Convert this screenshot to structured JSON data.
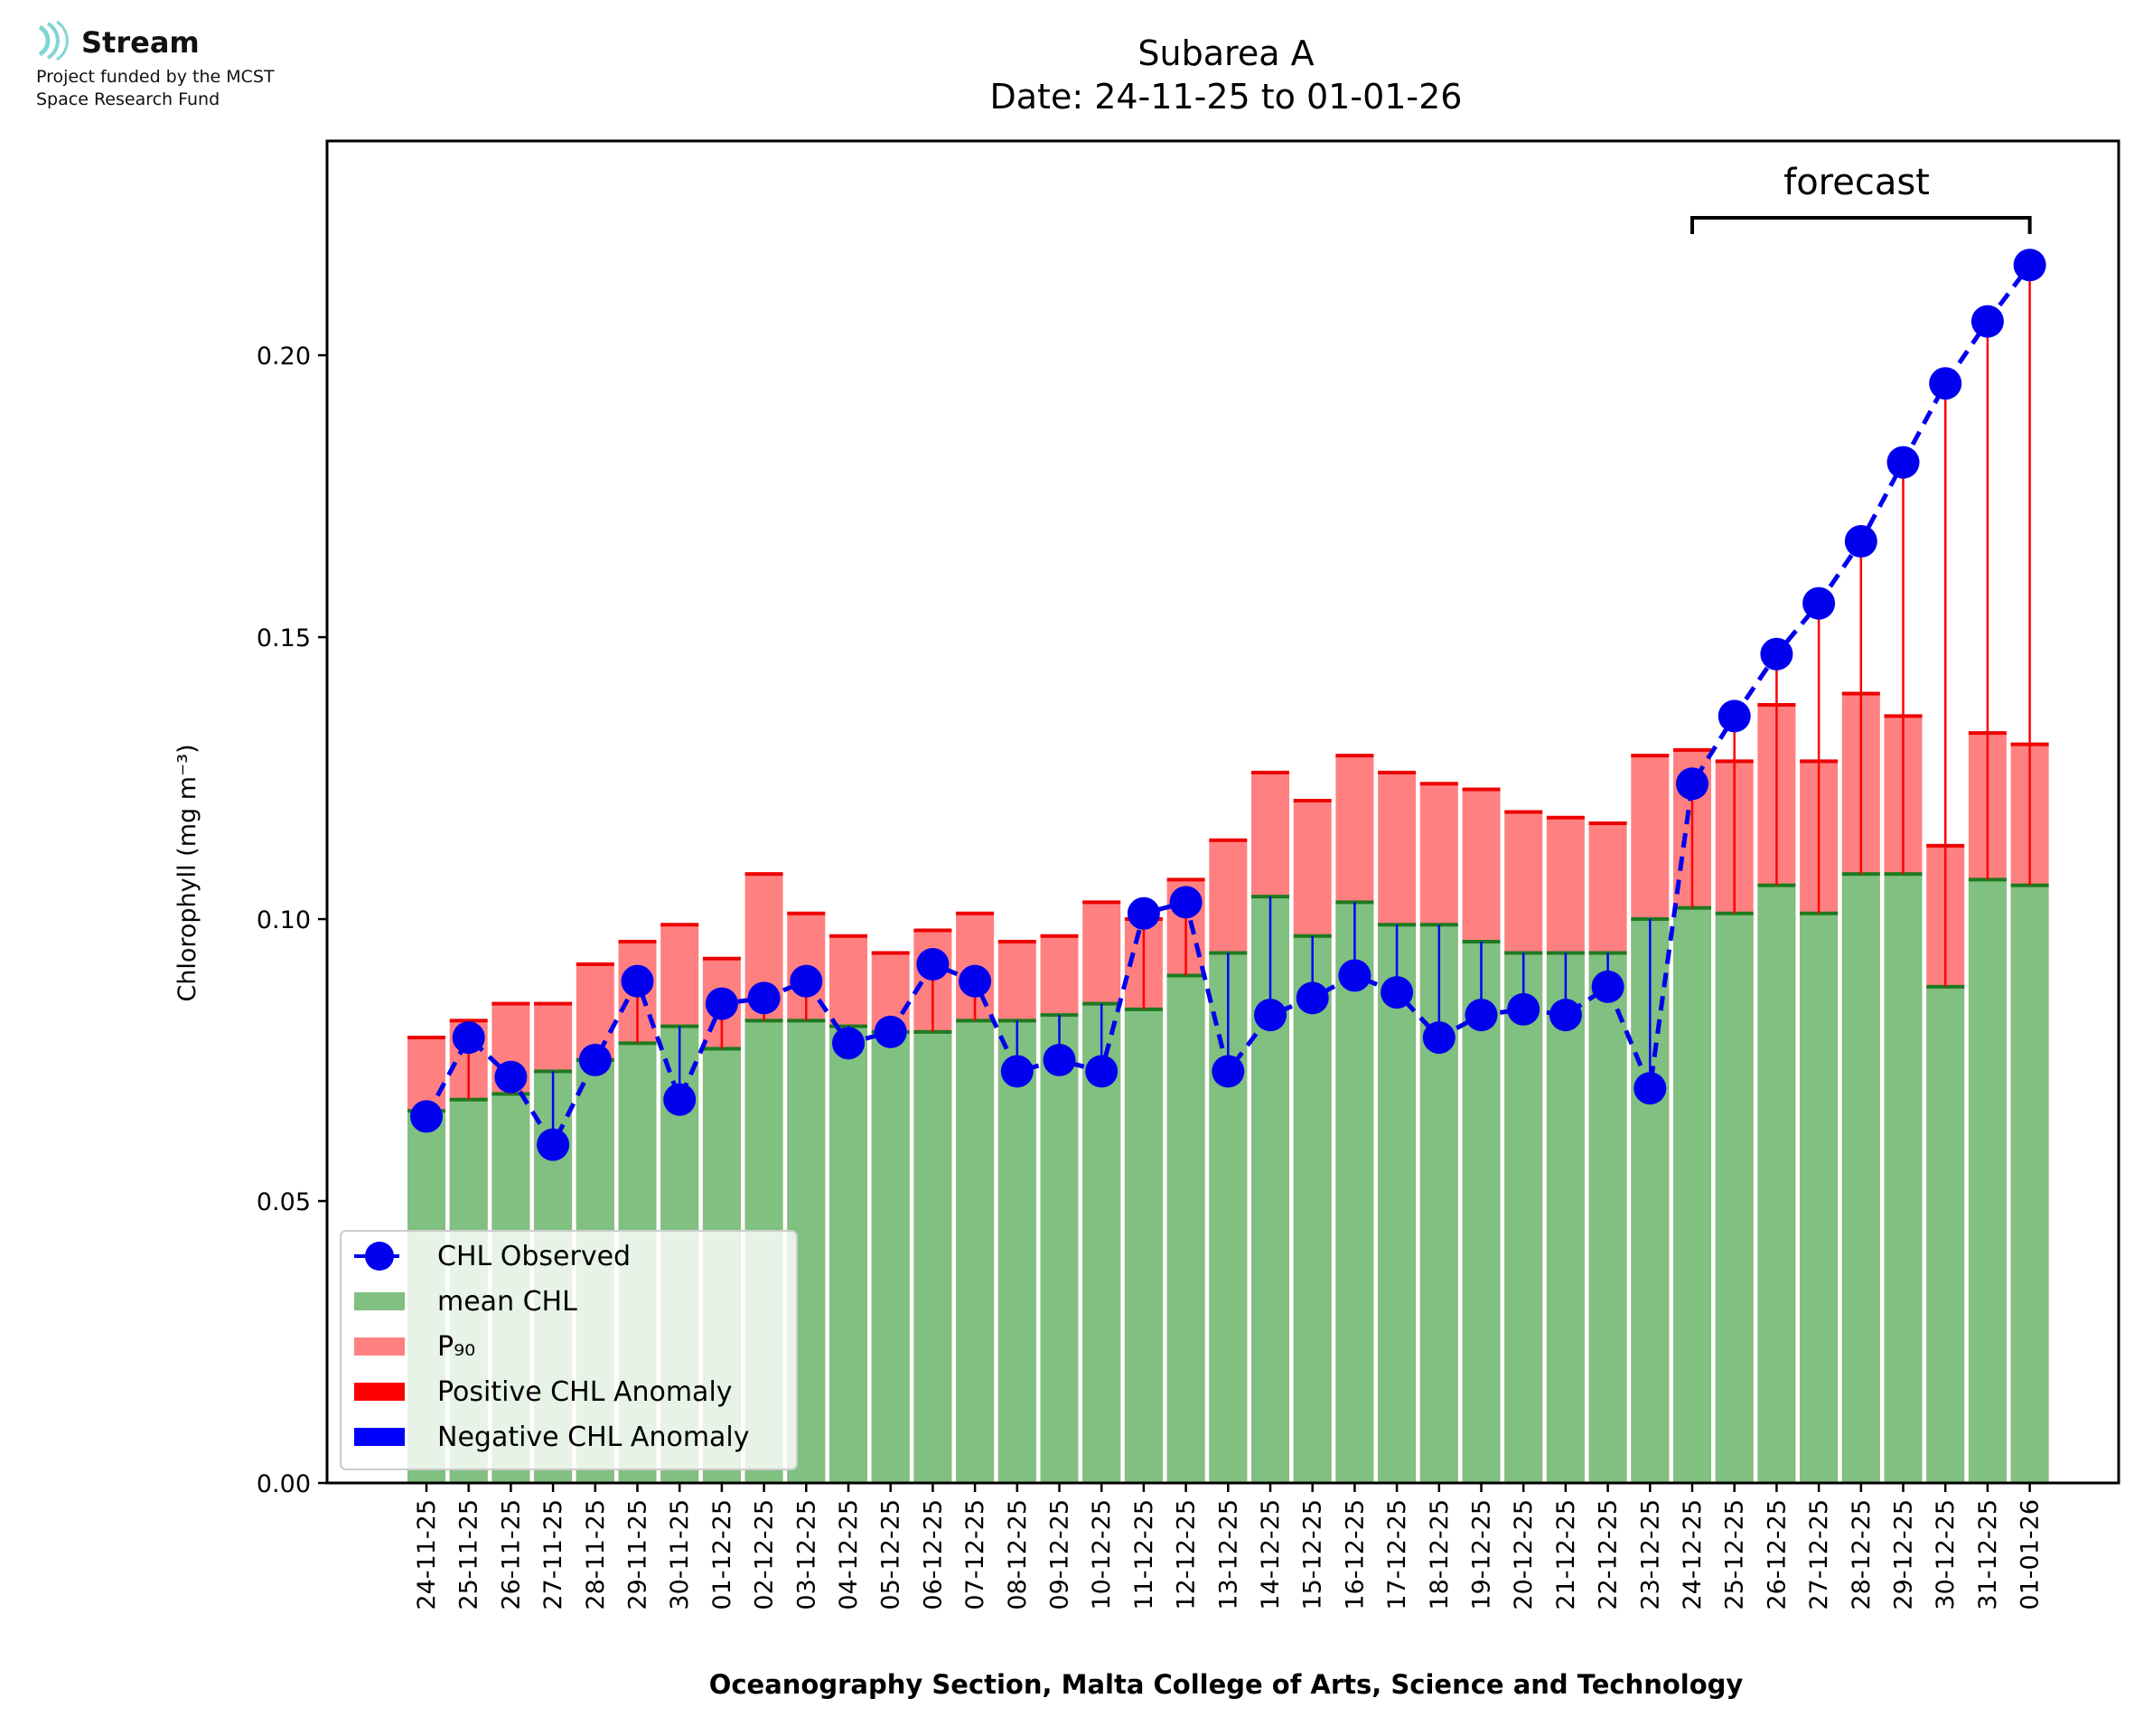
{
  "branding": {
    "name": "Stream",
    "line1": "Project funded by the MCST",
    "line2": "Space Research Fund",
    "accent_color": "#7fd6d4"
  },
  "chart_data": {
    "type": "bar",
    "title": "Subarea A",
    "subtitle": "Date: 24-11-25 to 01-01-26",
    "xlabel": "Oceanography Section, Malta College of Arts, Science and Technology",
    "ylabel": "Chlorophyll (mg m⁻³)",
    "ylim": [
      0,
      0.238
    ],
    "yticks": [
      0.0,
      0.05,
      0.1,
      0.15,
      0.2
    ],
    "ytick_labels": [
      "0.00",
      "0.05",
      "0.10",
      "0.15",
      "0.20"
    ],
    "annotation": "forecast",
    "forecast_start": "24-12-25",
    "forecast_end": "01-01-26",
    "categories": [
      "24-11-25",
      "25-11-25",
      "26-11-25",
      "27-11-25",
      "28-11-25",
      "29-11-25",
      "30-11-25",
      "01-12-25",
      "02-12-25",
      "03-12-25",
      "04-12-25",
      "05-12-25",
      "06-12-25",
      "07-12-25",
      "08-12-25",
      "09-12-25",
      "10-12-25",
      "11-12-25",
      "12-12-25",
      "13-12-25",
      "14-12-25",
      "15-12-25",
      "16-12-25",
      "17-12-25",
      "18-12-25",
      "19-12-25",
      "20-12-25",
      "21-12-25",
      "22-12-25",
      "23-12-25",
      "24-12-25",
      "25-12-25",
      "26-12-25",
      "27-12-25",
      "28-12-25",
      "29-12-25",
      "30-12-25",
      "31-12-25",
      "01-01-26"
    ],
    "series": [
      {
        "name": "mean CHL",
        "color": "#80c080",
        "values": [
          0.066,
          0.068,
          0.069,
          0.073,
          0.075,
          0.078,
          0.081,
          0.077,
          0.082,
          0.082,
          0.081,
          0.08,
          0.08,
          0.082,
          0.082,
          0.083,
          0.085,
          0.084,
          0.09,
          0.094,
          0.104,
          0.097,
          0.103,
          0.099,
          0.099,
          0.096,
          0.094,
          0.094,
          0.094,
          0.1,
          0.102,
          0.101,
          0.106,
          0.101,
          0.108,
          0.108,
          0.088,
          0.107,
          0.106
        ]
      },
      {
        "name": "P₉₀",
        "color": "#ff8080",
        "values": [
          0.079,
          0.082,
          0.085,
          0.085,
          0.092,
          0.096,
          0.099,
          0.093,
          0.108,
          0.101,
          0.097,
          0.094,
          0.098,
          0.101,
          0.096,
          0.097,
          0.103,
          0.1,
          0.107,
          0.114,
          0.126,
          0.121,
          0.129,
          0.126,
          0.124,
          0.123,
          0.119,
          0.118,
          0.117,
          0.129,
          0.13,
          0.128,
          0.138,
          0.128,
          0.14,
          0.136,
          0.113,
          0.133,
          0.131
        ]
      },
      {
        "name": "CHL Observed",
        "color": "#0000ee",
        "values": [
          0.065,
          0.079,
          0.072,
          0.06,
          0.075,
          0.089,
          0.068,
          0.085,
          0.086,
          0.089,
          0.078,
          0.08,
          0.092,
          0.089,
          0.073,
          0.075,
          0.073,
          0.101,
          0.103,
          0.073,
          0.083,
          0.086,
          0.09,
          0.087,
          0.079,
          0.083,
          0.084,
          0.083,
          0.088,
          0.07,
          0.124,
          0.136,
          0.147,
          0.156,
          0.167,
          0.181,
          0.195,
          0.206,
          0.216
        ]
      }
    ],
    "legend": {
      "position": "bottom-left",
      "entries": [
        "CHL Observed",
        "mean CHL",
        "P₉₀",
        "Positive CHL Anomaly",
        "Negative CHL Anomaly"
      ],
      "positive_color": "#ff0000",
      "negative_color": "#0000ff"
    }
  }
}
